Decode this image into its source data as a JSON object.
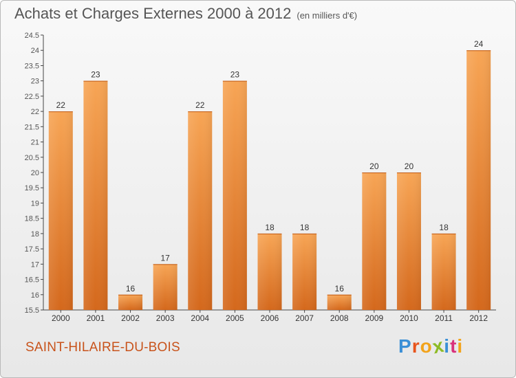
{
  "chart_data": {
    "type": "bar",
    "title": "Achats et Charges Externes 2000 à 2012",
    "unit": "(en milliers d'€)",
    "categories": [
      "2000",
      "2001",
      "2002",
      "2003",
      "2004",
      "2005",
      "2006",
      "2007",
      "2008",
      "2009",
      "2010",
      "2011",
      "2012"
    ],
    "values": [
      22,
      23,
      16,
      17,
      22,
      23,
      18,
      18,
      16,
      20,
      20,
      18,
      24
    ],
    "ylim": [
      15.5,
      24.5
    ],
    "yticks": [
      "15.5",
      "16",
      "16.5",
      "17",
      "17.5",
      "18",
      "18.5",
      "19",
      "19.5",
      "20",
      "20.5",
      "21",
      "21.5",
      "22",
      "22.5",
      "23",
      "23.5",
      "24",
      "24.5"
    ],
    "grid": false,
    "bar_color": "#e8802e"
  },
  "place_name": "SAINT-HILAIRE-DU-BOIS",
  "logo": {
    "letters": [
      "P",
      "r",
      "o",
      "x",
      "i",
      "t",
      "i"
    ],
    "colors": [
      "#3a8fd6",
      "#e8541c",
      "#f2a31b",
      "#8dbb25",
      "#3a8fd6",
      "#d9317b",
      "#f2a31b"
    ]
  }
}
